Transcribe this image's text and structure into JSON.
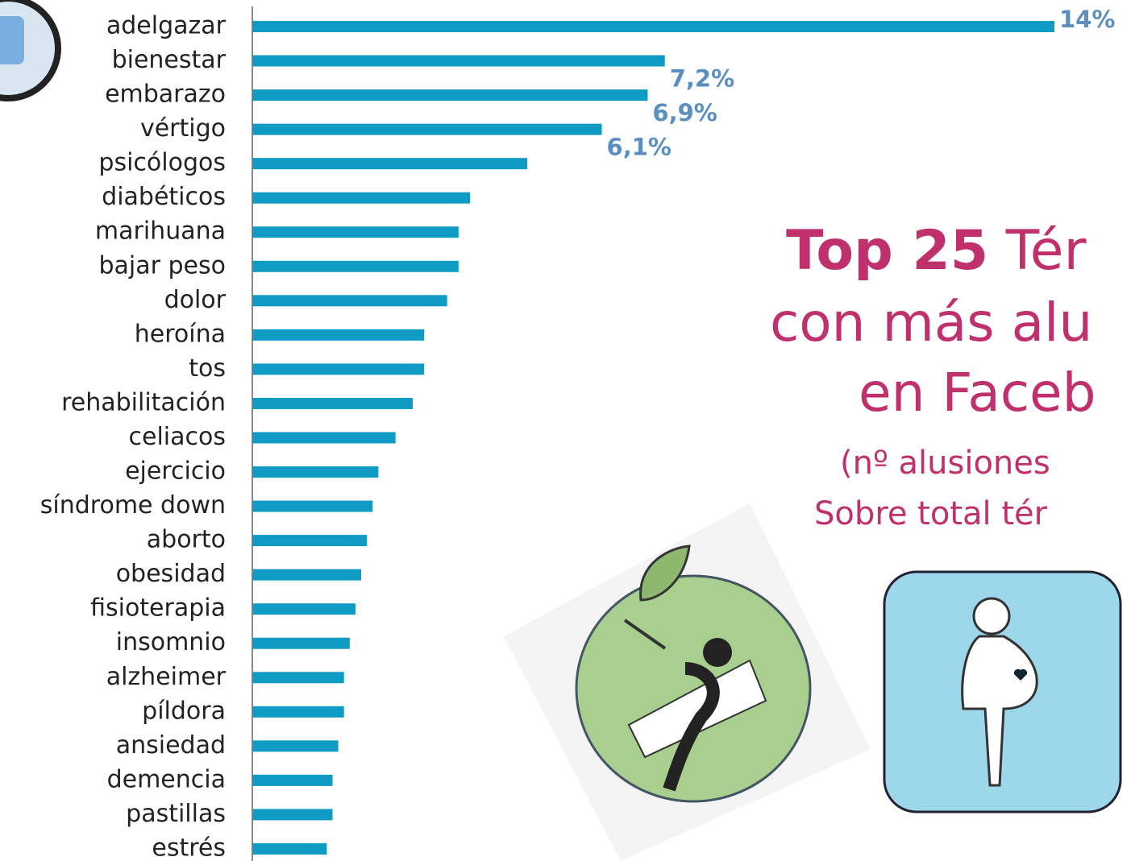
{
  "chart_data": {
    "type": "hbar",
    "title_lines": [
      [
        "Top 25",
        " Tér"
      ],
      [
        "con más alu"
      ],
      [
        "en Faceb"
      ]
    ],
    "subtitle_lines": [
      "(nº alusiones",
      "Sobre total tér"
    ],
    "categories": [
      "adelgazar",
      "bienestar",
      "embarazo",
      "vértigo",
      "psicólogos",
      "diabéticos",
      "marihuana",
      "bajar peso",
      "dolor",
      "heroína",
      "tos",
      "rehabilitación",
      "celiacos",
      "ejercicio",
      "síndrome down",
      "aborto",
      "obesidad",
      "fisioterapia",
      "insomnio",
      "alzheimer",
      "píldora",
      "ansiedad",
      "demencia",
      "pastillas",
      "estrés"
    ],
    "values": [
      14,
      7.2,
      6.9,
      6.1,
      4.8,
      3.8,
      3.6,
      3.6,
      3.4,
      3.0,
      3.0,
      2.8,
      2.5,
      2.2,
      2.1,
      2.0,
      1.9,
      1.8,
      1.7,
      1.6,
      1.6,
      1.5,
      1.4,
      1.4,
      1.3
    ],
    "value_labels": [
      "14%",
      "7,2%",
      "6,9%",
      "6,1%",
      null,
      null,
      null,
      null,
      null,
      null,
      null,
      null,
      null,
      null,
      null,
      null,
      null,
      null,
      null,
      null,
      null,
      null,
      null,
      null,
      null
    ],
    "color": "#0f9bc4"
  }
}
